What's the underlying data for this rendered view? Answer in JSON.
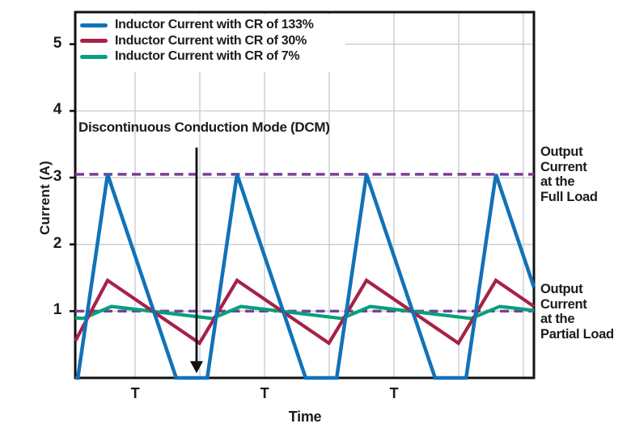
{
  "chart_data": {
    "type": "line",
    "title": "",
    "xlabel": "Time",
    "ylabel": "Current (A)",
    "x_axis": {
      "unit": "switching period T",
      "xlim": [
        0,
        3.544
      ],
      "gridline_positions_t": [
        0.4625,
        0.9625,
        1.4625,
        1.9625,
        2.4625,
        2.9625,
        3.4625
      ],
      "period_labels": [
        "T",
        "T",
        "T"
      ],
      "period_label_positions_t": [
        0.4625,
        1.4625,
        2.4625
      ]
    },
    "y_axis": {
      "ylim": [
        0,
        5.48
      ],
      "ticks": [
        1,
        2,
        3,
        4,
        5
      ],
      "gridlines": [
        1,
        2,
        3,
        4,
        5
      ]
    },
    "grid": true,
    "legend_position": "top-left",
    "series": [
      {
        "name": "Inductor Current with CR of 133%",
        "color": "#1172B8",
        "points": [
          [
            0,
            0
          ],
          [
            0.02,
            0
          ],
          [
            0.25,
            3.05
          ],
          [
            0.78,
            0
          ],
          [
            1.02,
            0
          ],
          [
            1.25,
            3.05
          ],
          [
            1.78,
            0
          ],
          [
            2.02,
            0
          ],
          [
            2.25,
            3.05
          ],
          [
            2.78,
            0
          ],
          [
            3.02,
            0
          ],
          [
            3.25,
            3.05
          ],
          [
            3.544,
            1.36
          ]
        ]
      },
      {
        "name": "Inductor Current with CR of 30%",
        "color": "#A52346",
        "points": [
          [
            0,
            0.55
          ],
          [
            0.25,
            1.46
          ],
          [
            0.96,
            0.52
          ],
          [
            1.25,
            1.46
          ],
          [
            1.96,
            0.52
          ],
          [
            2.25,
            1.46
          ],
          [
            2.96,
            0.52
          ],
          [
            3.25,
            1.46
          ],
          [
            3.544,
            1.07
          ]
        ]
      },
      {
        "name": "Inductor Current with CR of 7%",
        "color": "#00A17D",
        "points": [
          [
            0,
            0.9
          ],
          [
            0.06,
            0.89
          ],
          [
            0.28,
            1.07
          ],
          [
            1.06,
            0.89
          ],
          [
            1.28,
            1.07
          ],
          [
            2.06,
            0.89
          ],
          [
            2.28,
            1.07
          ],
          [
            3.06,
            0.89
          ],
          [
            3.28,
            1.07
          ],
          [
            3.544,
            1.01
          ]
        ]
      }
    ],
    "reference_lines": [
      {
        "label": "Output Current at the Full Load",
        "label_display": "Output\nCurrent\nat the\nFull Load",
        "value": 3.05,
        "style": "dashed",
        "color": "#7A3E98"
      },
      {
        "label": "Output Current at the Partial Load",
        "label_display": "Output\nCurrent\nat the\nPartial Load",
        "value": 1.0,
        "style": "dashed",
        "color": "#7A3E98"
      }
    ],
    "annotation": {
      "text": "Discontinuous Conduction Mode (DCM)",
      "arrow": {
        "t": 0.9375,
        "value_from": 3.45,
        "value_to": 0.07
      }
    },
    "style": {
      "axis_color": "#111111",
      "grid_color_horizontal": "#cbcbcf",
      "grid_color_vertical": "#c6c9d8",
      "text_color": "#1b1b1b"
    }
  }
}
